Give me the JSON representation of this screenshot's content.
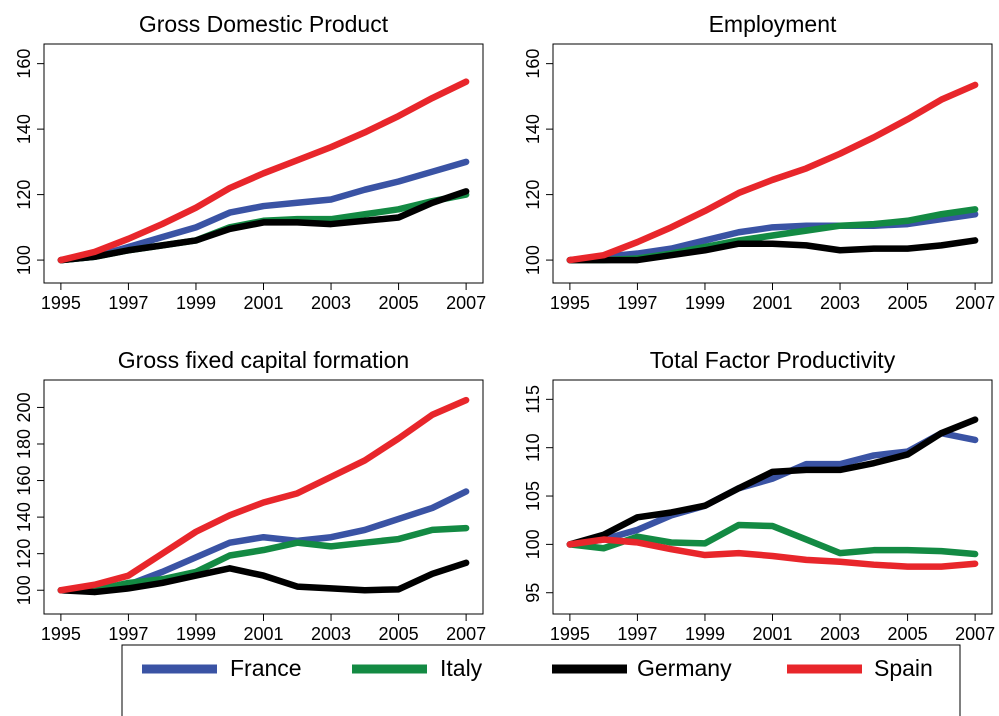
{
  "chart_data": [
    {
      "type": "line",
      "title": "Gross Domestic Product",
      "x": [
        1995,
        1996,
        1997,
        1998,
        1999,
        2000,
        2001,
        2002,
        2003,
        2004,
        2005,
        2006,
        2007
      ],
      "xlim": [
        1994.5,
        2007.5
      ],
      "xticks": [
        1995,
        1997,
        1999,
        2001,
        2003,
        2005,
        2007
      ],
      "ylim": [
        93,
        166
      ],
      "yticks": [
        100,
        120,
        140,
        160
      ],
      "series": [
        {
          "values": [
            100,
            101,
            104,
            107,
            110,
            114.5,
            116.5,
            117.5,
            118.5,
            121.5,
            124,
            127,
            130
          ]
        },
        {
          "values": [
            100,
            101,
            103,
            104.5,
            106,
            110,
            112,
            112.5,
            112.5,
            114,
            115.5,
            118,
            120
          ]
        },
        {
          "values": [
            100,
            101,
            103,
            104.5,
            106,
            109.5,
            111.5,
            111.5,
            111,
            112,
            113,
            117.5,
            121
          ]
        },
        {
          "values": [
            100,
            102.5,
            106.5,
            111,
            116,
            122,
            126.5,
            130.5,
            134.5,
            139,
            144,
            149.5,
            154.5
          ]
        }
      ]
    },
    {
      "type": "line",
      "title": "Employment",
      "x": [
        1995,
        1996,
        1997,
        1998,
        1999,
        2000,
        2001,
        2002,
        2003,
        2004,
        2005,
        2006,
        2007
      ],
      "xlim": [
        1994.5,
        2007.5
      ],
      "xticks": [
        1995,
        1997,
        1999,
        2001,
        2003,
        2005,
        2007
      ],
      "ylim": [
        93,
        166
      ],
      "yticks": [
        100,
        120,
        140,
        160
      ],
      "series": [
        {
          "values": [
            100,
            101,
            102,
            103.5,
            106,
            108.5,
            110,
            110.5,
            110.5,
            110.5,
            111,
            112.5,
            114
          ]
        },
        {
          "values": [
            100,
            100,
            100.5,
            102,
            104,
            106,
            107.5,
            109,
            110.5,
            111,
            112,
            114,
            115.5
          ]
        },
        {
          "values": [
            100,
            100,
            100,
            101.5,
            103,
            105,
            105,
            104.5,
            103,
            103.5,
            103.5,
            104.5,
            106
          ]
        },
        {
          "values": [
            100,
            101.5,
            105.5,
            110,
            115,
            120.5,
            124.5,
            128,
            132.5,
            137.5,
            143,
            149,
            153.5
          ]
        }
      ]
    },
    {
      "type": "line",
      "title": "Gross fixed capital formation",
      "x": [
        1995,
        1996,
        1997,
        1998,
        1999,
        2000,
        2001,
        2002,
        2003,
        2004,
        2005,
        2006,
        2007
      ],
      "xlim": [
        1994.5,
        2007.5
      ],
      "xticks": [
        1995,
        1997,
        1999,
        2001,
        2003,
        2005,
        2007
      ],
      "ylim": [
        87,
        215
      ],
      "yticks": [
        100,
        120,
        140,
        160,
        180,
        200
      ],
      "series": [
        {
          "values": [
            100,
            100,
            103,
            110,
            118,
            126,
            129,
            127,
            129,
            133,
            139,
            145,
            154
          ]
        },
        {
          "values": [
            100,
            100,
            104,
            106,
            110,
            119,
            122,
            126,
            124,
            126,
            128,
            133,
            134
          ]
        },
        {
          "values": [
            100,
            99,
            101,
            104,
            108,
            112,
            108,
            102,
            101,
            100,
            100.5,
            109,
            115
          ]
        },
        {
          "values": [
            100,
            103,
            108,
            120,
            132,
            141,
            148,
            153,
            162,
            171,
            183,
            196,
            204
          ]
        }
      ]
    },
    {
      "type": "line",
      "title": "Total Factor Productivity",
      "x": [
        1995,
        1996,
        1997,
        1998,
        1999,
        2000,
        2001,
        2002,
        2003,
        2004,
        2005,
        2006,
        2007
      ],
      "xlim": [
        1994.5,
        2007.5
      ],
      "xticks": [
        1995,
        1997,
        1999,
        2001,
        2003,
        2005,
        2007
      ],
      "ylim": [
        92.8,
        117
      ],
      "yticks": [
        95,
        100,
        105,
        110,
        115
      ],
      "series": [
        {
          "values": [
            100,
            100.5,
            101.5,
            103,
            104,
            105.8,
            106.8,
            108.3,
            108.3,
            109.2,
            109.6,
            111.5,
            110.8
          ]
        },
        {
          "values": [
            100,
            99.6,
            100.8,
            100.2,
            100.1,
            102,
            101.9,
            100.5,
            99.1,
            99.4,
            99.4,
            99.3,
            99
          ]
        },
        {
          "values": [
            100,
            101,
            102.8,
            103.3,
            104,
            105.8,
            107.5,
            107.7,
            107.7,
            108.4,
            109.3,
            111.5,
            112.9
          ]
        },
        {
          "values": [
            100,
            100.5,
            100.2,
            99.5,
            98.9,
            99.1,
            98.8,
            98.4,
            98.2,
            97.9,
            97.7,
            97.7,
            98
          ]
        }
      ]
    }
  ],
  "legend": [
    {
      "name": "France",
      "color": "#3a53a4"
    },
    {
      "name": "Italy",
      "color": "#138a43"
    },
    {
      "name": "Germany",
      "color": "#000000"
    },
    {
      "name": "Spain",
      "color": "#e8262b"
    }
  ]
}
